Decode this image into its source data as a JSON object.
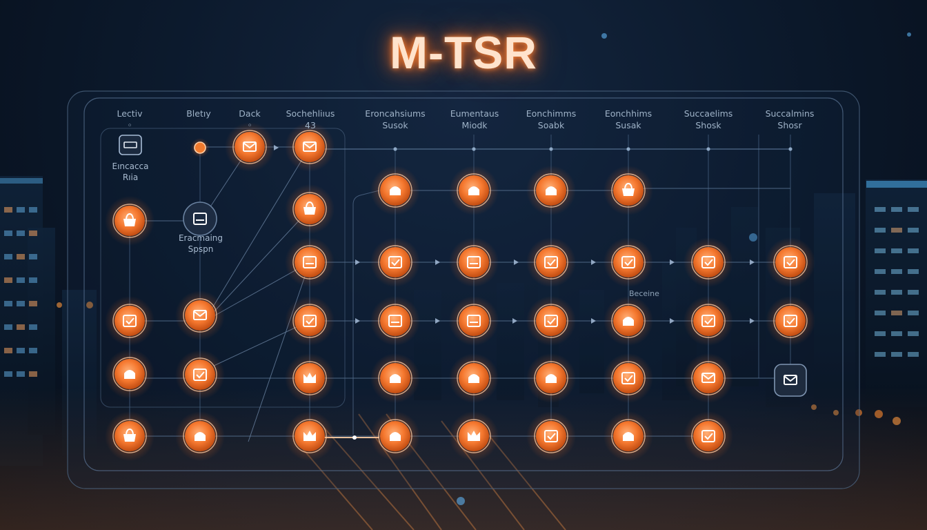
{
  "title": "M-TSR",
  "columns": [
    {
      "label": "Lectiv\n◦"
    },
    {
      "label": "Bletıy"
    },
    {
      "label": "Dack\n◦"
    },
    {
      "label": "Sochehliıus\n43"
    },
    {
      "label": "Eroncahsiums\nSusok"
    },
    {
      "label": "Eumentaus\nMiodk"
    },
    {
      "label": "Eonchimms\nSoabk"
    },
    {
      "label": "Eonchhims\nSusak"
    },
    {
      "label": "Succaelims\nShosk"
    },
    {
      "label": "Succalmins\nShosr"
    }
  ],
  "side_labels": {
    "start_node": "Eıncacca\nRıia",
    "mid_node": "Eracmaing\nSpspn"
  },
  "annotation": "Beceine",
  "colors": {
    "node_fill": "#f0762c",
    "node_glow": "#ff7a2a",
    "background": "#0c1a2d",
    "grid_line": "#3c5573",
    "panel_border": "#4a627e"
  }
}
